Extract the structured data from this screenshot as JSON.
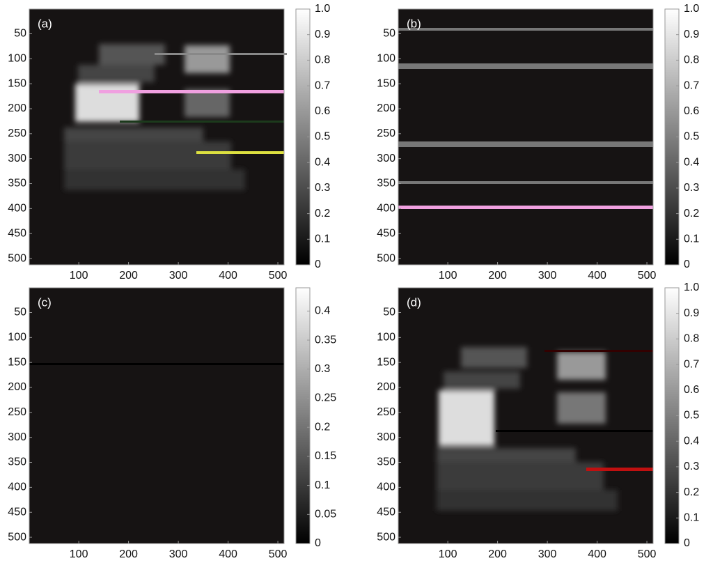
{
  "chart_data": [
    {
      "type": "image",
      "title": "(a)",
      "colormap": "gray",
      "yreverse": true,
      "xlim": [
        0.5,
        512.5
      ],
      "ylim": [
        0.5,
        512.5
      ],
      "xticks": [
        100,
        200,
        300,
        400,
        500
      ],
      "yticks": [
        50,
        100,
        150,
        200,
        250,
        300,
        350,
        400,
        450,
        500
      ],
      "clim": [
        0,
        1
      ],
      "cticks": [
        0,
        0.1,
        0.2,
        0.3,
        0.4,
        0.5,
        0.6,
        0.7,
        0.8,
        0.9,
        {
          "value": 1,
          "label": "1.0"
        }
      ]
    },
    {
      "type": "image",
      "title": "(b)",
      "colormap": "gray",
      "yreverse": true,
      "xlim": [
        0.5,
        512.5
      ],
      "ylim": [
        0.5,
        512.5
      ],
      "xticks": [
        100,
        200,
        300,
        400,
        500
      ],
      "yticks": [
        50,
        100,
        150,
        200,
        250,
        300,
        350,
        400,
        450,
        500
      ],
      "clim": [
        0,
        1
      ],
      "cticks": [
        0,
        0.1,
        0.2,
        0.3,
        0.4,
        0.5,
        0.6,
        0.7,
        0.8,
        0.9,
        {
          "value": 1,
          "label": "1.0"
        }
      ]
    },
    {
      "type": "image",
      "title": "(c)",
      "colormap": "gray",
      "yreverse": true,
      "xlim": [
        0.5,
        512.5
      ],
      "ylim": [
        0.5,
        512.5
      ],
      "xticks": [
        100,
        200,
        300,
        400,
        500
      ],
      "yticks": [
        50,
        100,
        150,
        200,
        250,
        300,
        350,
        400,
        450,
        500
      ],
      "clim": [
        0,
        0.44
      ],
      "cticks": [
        0,
        0.05,
        0.1,
        0.15,
        0.2,
        0.25,
        0.3,
        0.35,
        0.4
      ]
    },
    {
      "type": "image",
      "title": "(d)",
      "colormap": "gray",
      "yreverse": true,
      "xlim": [
        0.5,
        512.5
      ],
      "ylim": [
        0.5,
        512.5
      ],
      "xticks": [
        100,
        200,
        300,
        400,
        500
      ],
      "yticks": [
        50,
        100,
        150,
        200,
        250,
        300,
        350,
        400,
        450,
        500
      ],
      "clim": [
        0,
        1
      ],
      "cticks": [
        0,
        0.1,
        0.2,
        0.3,
        0.4,
        0.5,
        0.6,
        0.7,
        0.8,
        0.9,
        {
          "value": 1,
          "label": "1.0"
        }
      ]
    }
  ]
}
